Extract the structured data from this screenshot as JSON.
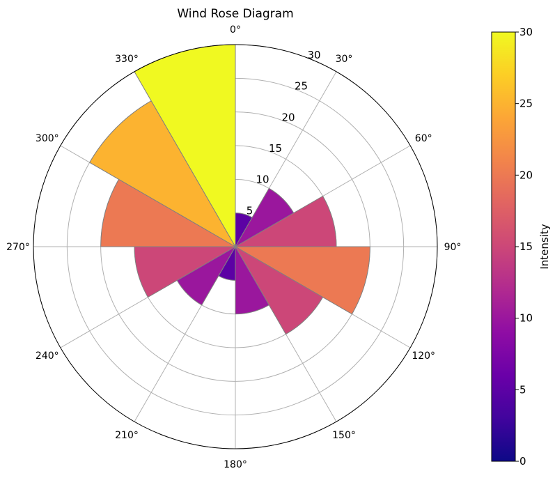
{
  "chart_data": {
    "type": "polar-bar",
    "title": "Wind Rose Diagram",
    "theta_direction": "clockwise",
    "theta_zero": "north",
    "theta_ticks": [
      "0°",
      "30°",
      "60°",
      "90°",
      "120°",
      "150°",
      "180°",
      "210°",
      "240°",
      "270°",
      "300°",
      "330°"
    ],
    "r_ticks": [
      "5",
      "10",
      "15",
      "20",
      "25",
      "30"
    ],
    "r_tick_values": [
      5,
      10,
      15,
      20,
      25,
      30
    ],
    "rlim": [
      0,
      30
    ],
    "bar_width_deg": 30,
    "directions_deg": [
      0,
      30,
      60,
      90,
      120,
      150,
      180,
      210,
      240,
      270,
      300,
      330
    ],
    "values": [
      5,
      10,
      15,
      20,
      15,
      10,
      5,
      10,
      15,
      20,
      25,
      30
    ],
    "grid": true,
    "colorbar": {
      "label": "Intensity",
      "colormap": "plasma",
      "range": [
        0,
        30
      ],
      "ticks": [
        "0",
        "5",
        "10",
        "15",
        "20",
        "25",
        "30"
      ],
      "tick_values": [
        0,
        5,
        10,
        15,
        20,
        25,
        30
      ]
    }
  }
}
